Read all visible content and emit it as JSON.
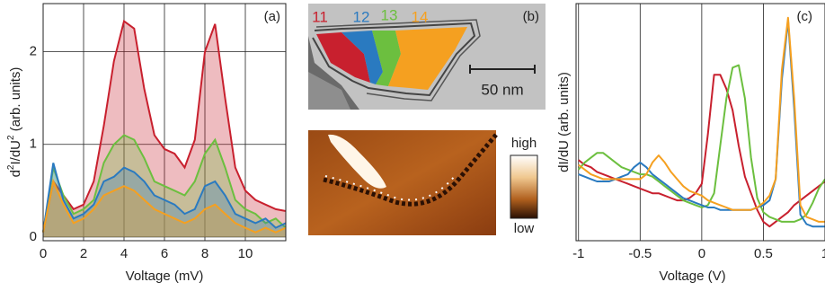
{
  "chart_data": [
    {
      "type": "area",
      "annotation": "(a)",
      "xlabel": "Voltage (mV)",
      "ylabel": {
        "parts": [
          "d",
          "2",
          "I/dU",
          "2",
          " (arb. units)"
        ],
        "superscript": [
          false,
          true,
          false,
          true,
          false
        ]
      },
      "x": [
        0,
        0.5,
        1,
        1.5,
        2,
        2.5,
        3,
        3.5,
        4,
        4.5,
        5,
        5.5,
        6,
        6.5,
        7,
        7.5,
        8,
        8.5,
        9,
        9.5,
        10,
        10.5,
        11,
        11.5,
        12
      ],
      "series": [
        {
          "color": "#c8202e",
          "values": [
            0.05,
            0.6,
            0.45,
            0.3,
            0.35,
            0.6,
            1.2,
            1.9,
            2.33,
            2.25,
            1.6,
            1.1,
            0.95,
            0.9,
            0.75,
            1.05,
            2.0,
            2.3,
            1.5,
            0.75,
            0.5,
            0.4,
            0.35,
            0.3,
            0.28
          ]
        },
        {
          "color": "#6cbf3f",
          "values": [
            0.05,
            0.75,
            0.45,
            0.25,
            0.3,
            0.4,
            0.8,
            1.0,
            1.1,
            1.05,
            0.85,
            0.6,
            0.55,
            0.5,
            0.45,
            0.6,
            0.9,
            1.05,
            0.75,
            0.4,
            0.3,
            0.25,
            0.15,
            0.2,
            0.1
          ]
        },
        {
          "color": "#2a7ac0",
          "values": [
            0.05,
            0.8,
            0.4,
            0.2,
            0.25,
            0.35,
            0.6,
            0.65,
            0.75,
            0.7,
            0.6,
            0.45,
            0.4,
            0.35,
            0.25,
            0.3,
            0.55,
            0.6,
            0.45,
            0.25,
            0.2,
            0.15,
            0.2,
            0.1,
            0.15
          ]
        },
        {
          "color": "#f5a020",
          "values": [
            0.05,
            0.6,
            0.35,
            0.15,
            0.2,
            0.3,
            0.45,
            0.5,
            0.55,
            0.5,
            0.4,
            0.3,
            0.25,
            0.2,
            0.15,
            0.2,
            0.3,
            0.35,
            0.25,
            0.15,
            0.1,
            0.05,
            0.1,
            0.05,
            0.1
          ]
        }
      ],
      "xlim": [
        0,
        12
      ],
      "ylim": [
        -0.04,
        2.52
      ],
      "xticks": [
        0,
        2,
        4,
        6,
        8,
        10
      ],
      "yticks": [
        0,
        1,
        2
      ],
      "grid": true
    },
    {
      "type": "line",
      "annotation": "(c)",
      "xlabel": "Voltage (V)",
      "ylabel": {
        "parts": [
          "dI/dU (arb. units)"
        ],
        "superscript": [
          false
        ]
      },
      "x": [
        -1,
        -0.95,
        -0.9,
        -0.85,
        -0.8,
        -0.75,
        -0.7,
        -0.65,
        -0.6,
        -0.55,
        -0.5,
        -0.45,
        -0.4,
        -0.35,
        -0.3,
        -0.25,
        -0.2,
        -0.15,
        -0.1,
        -0.05,
        0,
        0.05,
        0.1,
        0.15,
        0.2,
        0.25,
        0.3,
        0.35,
        0.4,
        0.45,
        0.5,
        0.55,
        0.6,
        0.65,
        0.7,
        0.75,
        0.8,
        0.85,
        0.9,
        0.95,
        1
      ],
      "series": [
        {
          "color": "#c8202e",
          "values": [
            0.34,
            0.32,
            0.31,
            0.29,
            0.28,
            0.27,
            0.26,
            0.25,
            0.24,
            0.23,
            0.22,
            0.21,
            0.2,
            0.2,
            0.19,
            0.18,
            0.17,
            0.17,
            0.18,
            0.2,
            0.24,
            0.45,
            0.7,
            0.7,
            0.64,
            0.55,
            0.4,
            0.27,
            0.2,
            0.13,
            0.08,
            0.06,
            0.08,
            0.1,
            0.12,
            0.15,
            0.17,
            0.19,
            0.21,
            0.23,
            0.25
          ]
        },
        {
          "color": "#6cbf3f",
          "values": [
            0.3,
            0.33,
            0.35,
            0.37,
            0.37,
            0.35,
            0.33,
            0.31,
            0.3,
            0.29,
            0.28,
            0.28,
            0.27,
            0.25,
            0.23,
            0.21,
            0.19,
            0.17,
            0.16,
            0.15,
            0.14,
            0.15,
            0.2,
            0.4,
            0.6,
            0.73,
            0.74,
            0.6,
            0.35,
            0.18,
            0.12,
            0.1,
            0.09,
            0.08,
            0.08,
            0.08,
            0.09,
            0.11,
            0.16,
            0.22,
            0.26
          ]
        },
        {
          "color": "#2a7ac0",
          "values": [
            0.28,
            0.27,
            0.26,
            0.25,
            0.25,
            0.25,
            0.26,
            0.27,
            0.28,
            0.31,
            0.33,
            0.31,
            0.28,
            0.26,
            0.24,
            0.22,
            0.2,
            0.18,
            0.17,
            0.16,
            0.15,
            0.14,
            0.14,
            0.13,
            0.13,
            0.13,
            0.13,
            0.13,
            0.13,
            0.14,
            0.15,
            0.17,
            0.26,
            0.68,
            0.93,
            0.56,
            0.11,
            0.07,
            0.06,
            0.06,
            0.06
          ]
        },
        {
          "color": "#f5a020",
          "values": [
            0.32,
            0.3,
            0.28,
            0.27,
            0.26,
            0.26,
            0.26,
            0.26,
            0.26,
            0.26,
            0.26,
            0.28,
            0.33,
            0.36,
            0.33,
            0.29,
            0.26,
            0.23,
            0.21,
            0.2,
            0.19,
            0.17,
            0.16,
            0.15,
            0.14,
            0.13,
            0.13,
            0.13,
            0.13,
            0.14,
            0.16,
            0.19,
            0.26,
            0.72,
            0.94,
            0.6,
            0.15,
            0.1,
            0.09,
            0.08,
            0.08
          ]
        }
      ],
      "xlim": [
        -1.02,
        1.0
      ],
      "ylim": [
        0,
        1
      ],
      "xticks": [
        -1,
        -0.5,
        0,
        0.5,
        1
      ],
      "grid": true
    }
  ],
  "image_panel": {
    "annotation": "(b)",
    "domain_labels": [
      "11",
      "12",
      "13",
      "14"
    ],
    "domain_colors": [
      "#c8202e",
      "#2a7ac0",
      "#6cbf3f",
      "#f5a020"
    ],
    "scale_bar": "50 nm",
    "colorbar_high": "high",
    "colorbar_low": "low"
  }
}
